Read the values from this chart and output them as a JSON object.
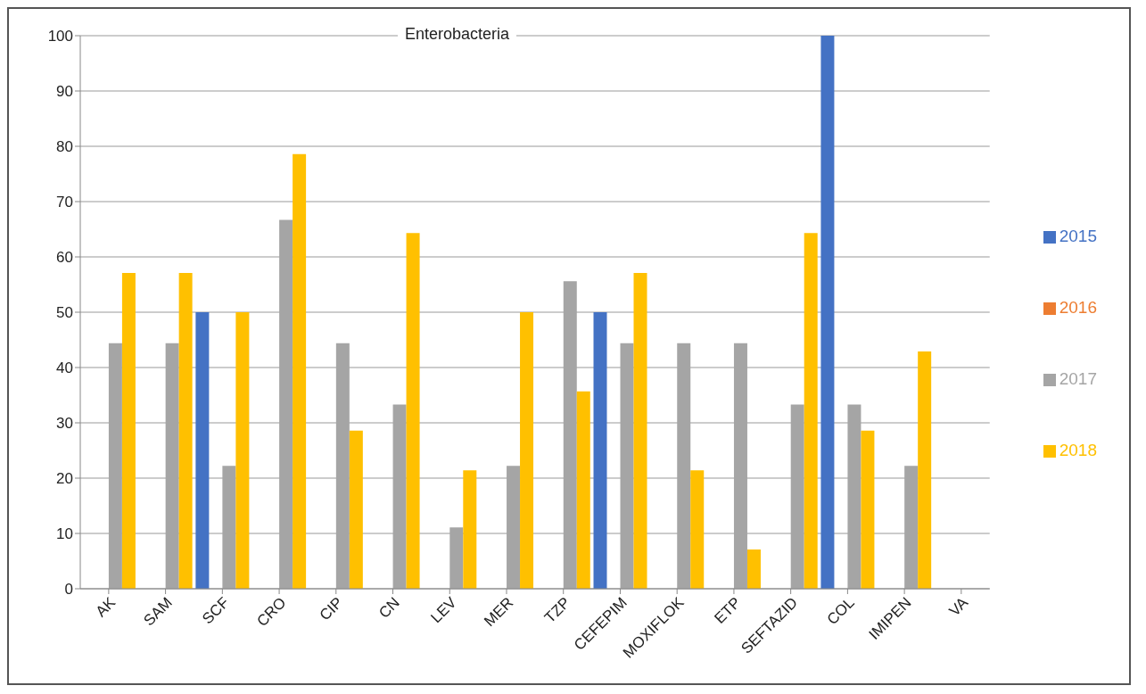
{
  "chart_data": {
    "type": "bar",
    "title": "Enterobacteria",
    "categories": [
      "AK",
      "SAM",
      "SCF",
      "CRO",
      "CIP",
      "CN",
      "LEV",
      "MER",
      "TZP",
      "CEFEPIM",
      "MOXIFLOK",
      "ETP",
      "SEFTAZID",
      "COL",
      "IMIPEN",
      "VA"
    ],
    "series": [
      {
        "name": "2015",
        "color": "#4472c4",
        "values": [
          null,
          null,
          50,
          null,
          null,
          null,
          null,
          null,
          null,
          50,
          null,
          null,
          null,
          100,
          null,
          null
        ]
      },
      {
        "name": "2016",
        "color": "#ed7d31",
        "values": [
          null,
          null,
          null,
          null,
          null,
          null,
          null,
          null,
          null,
          null,
          null,
          null,
          null,
          null,
          null,
          null
        ]
      },
      {
        "name": "2017",
        "color": "#a5a5a5",
        "values": [
          44.4,
          44.4,
          22.2,
          66.7,
          44.4,
          33.3,
          11.1,
          22.2,
          55.6,
          44.4,
          44.4,
          44.4,
          33.3,
          33.3,
          22.2,
          null
        ]
      },
      {
        "name": "2018",
        "color": "#ffc000",
        "values": [
          57.1,
          57.1,
          50,
          78.6,
          28.6,
          64.3,
          21.4,
          50,
          35.7,
          57.1,
          21.4,
          7.1,
          64.3,
          28.6,
          42.9,
          null
        ]
      }
    ],
    "ylim": [
      0,
      100
    ],
    "yticks": [
      0,
      10,
      20,
      30,
      40,
      50,
      60,
      70,
      80,
      90,
      100
    ],
    "grid": "y",
    "legend": "right"
  }
}
